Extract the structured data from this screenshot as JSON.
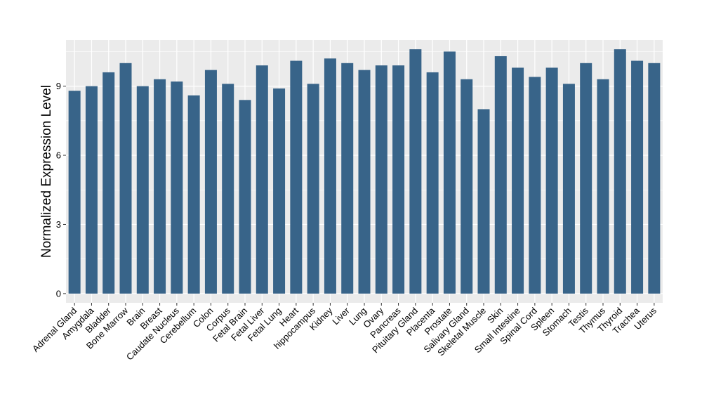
{
  "chart_data": {
    "type": "bar",
    "title": "",
    "xlabel": "",
    "ylabel": "Normalized Expression Level",
    "ylim": [
      -0.4,
      11.0
    ],
    "yticks": [
      0,
      3,
      6,
      9
    ],
    "grid": true,
    "legend": "none",
    "colors": {
      "bar": "#386489",
      "panel": "#ebebeb",
      "grid": "#ffffff",
      "tick_text": "#000000"
    },
    "categories": [
      "Adrenal Gland",
      "Amygdala",
      "Bladder",
      "Bone Marrow",
      "Brain",
      "Breast",
      "Caudate Nucleus",
      "Cerebellum",
      "Colon",
      "Corpus",
      "Fetal Brain",
      "Fetal Liver",
      "Fetal Lung",
      "Heart",
      "hippocampus",
      "Kidney",
      "Liver",
      "Lung",
      "Ovary",
      "Pancreas",
      "Pituitary Gland",
      "Placenta",
      "Prostate",
      "Salivary Gland",
      "Skeletal Muscle",
      "Skin",
      "Small Intestine",
      "Spinal Cord",
      "Spleen",
      "Stomach",
      "Testis",
      "Thymus",
      "Thyroid",
      "Trachea",
      "Uterus"
    ],
    "values": [
      8.8,
      9.0,
      9.6,
      10.0,
      9.0,
      9.3,
      9.2,
      8.6,
      9.7,
      9.1,
      8.4,
      9.9,
      8.9,
      10.1,
      9.1,
      10.2,
      10.0,
      9.7,
      9.9,
      9.9,
      10.6,
      9.6,
      10.5,
      9.3,
      8.0,
      10.3,
      9.8,
      9.4,
      9.8,
      9.1,
      10.0,
      9.3,
      10.6,
      10.1,
      10.0
    ]
  }
}
